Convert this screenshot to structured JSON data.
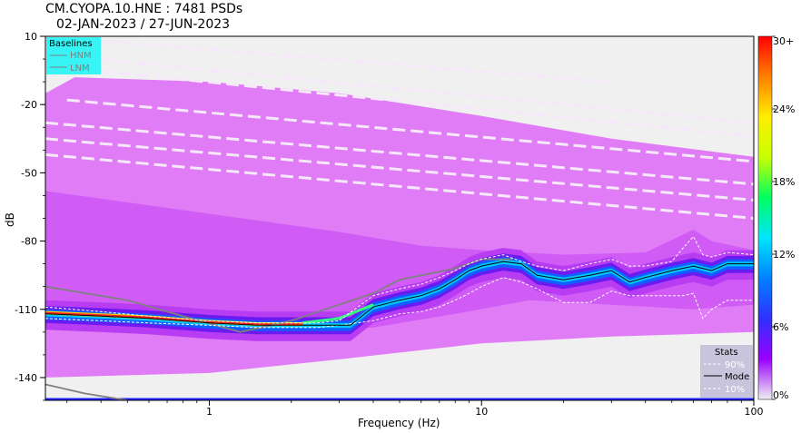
{
  "title": {
    "line1": "CM.CYOPA.10.HNE : 7481 PSDs",
    "line2": "02-JAN-2023 / 27-JUN-2023"
  },
  "chart_data": {
    "type": "heatmap",
    "xlabel": "Frequency (Hz)",
    "ylabel": "dB",
    "x_scale": "log",
    "xlim": [
      0.25,
      100
    ],
    "ylim": [
      -150,
      10
    ],
    "x_ticks": [
      {
        "value": 1,
        "label": "1"
      },
      {
        "value": 10,
        "label": "10"
      },
      {
        "value": 100,
        "label": "100"
      }
    ],
    "y_ticks": [
      {
        "value": 10,
        "label": "10"
      },
      {
        "value": -20,
        "label": "-20"
      },
      {
        "value": -50,
        "label": "-50"
      },
      {
        "value": -80,
        "label": "-80"
      },
      {
        "value": -110,
        "label": "-110"
      },
      {
        "value": -140,
        "label": "-140"
      }
    ],
    "colorbar": {
      "ticks": [
        {
          "value": 30,
          "label": "30+"
        },
        {
          "value": 24,
          "label": "24%"
        },
        {
          "value": 18,
          "label": "18%"
        },
        {
          "value": 12,
          "label": "12%"
        },
        {
          "value": 6,
          "label": "6%"
        },
        {
          "value": 0,
          "label": "0%"
        }
      ],
      "colors": [
        "#f0f0f0",
        "#9b00ff",
        "#3030ff",
        "#0080ff",
        "#00e5ff",
        "#00ff60",
        "#c8ff00",
        "#ffee00",
        "#ff8000",
        "#ff0000"
      ]
    },
    "baselines_legend": {
      "title": "Baselines",
      "entries": [
        {
          "name": "HNM",
          "color": "#808080"
        },
        {
          "name": "LNM",
          "color": "#808080"
        }
      ]
    },
    "stats_legend": {
      "title": "Stats",
      "entries": [
        {
          "name": "90%",
          "style": "dashed",
          "color": "#ffffff"
        },
        {
          "name": "Mode",
          "style": "solid",
          "color": "#000000"
        },
        {
          "name": "10%",
          "style": "dashed",
          "color": "#ffffff"
        }
      ]
    },
    "series": {
      "mode": {
        "x": [
          0.25,
          0.4,
          0.6,
          1,
          1.5,
          2,
          2.5,
          3,
          3.3,
          4,
          5,
          6,
          7,
          8,
          9,
          10,
          12,
          14,
          16,
          20,
          25,
          30,
          35,
          40,
          50,
          60,
          70,
          80,
          100
        ],
        "y": [
          -112,
          -113,
          -114,
          -116,
          -117,
          -117,
          -117,
          -117,
          -117,
          -109,
          -106,
          -104,
          -101,
          -97,
          -93,
          -91,
          -89,
          -90,
          -95,
          -97,
          -95,
          -93,
          -98,
          -96,
          -93,
          -91,
          -93,
          -90,
          -90
        ]
      },
      "p90": {
        "x": [
          0.25,
          0.4,
          0.6,
          1,
          1.5,
          2,
          2.5,
          3,
          4,
          5,
          6,
          7,
          8,
          9,
          10,
          12,
          14,
          16,
          20,
          25,
          30,
          35,
          40,
          50,
          55,
          60,
          65,
          70,
          80,
          100
        ],
        "y": [
          -109,
          -111,
          -113,
          -115,
          -116,
          -116,
          -116,
          -115,
          -104,
          -101,
          -99,
          -96,
          -93,
          -90,
          -88,
          -86,
          -89,
          -91,
          -93,
          -90,
          -88,
          -91,
          -91,
          -89,
          -83,
          -78,
          -86,
          -87,
          -85,
          -86
        ]
      },
      "p10": {
        "x": [
          0.25,
          0.4,
          0.6,
          1,
          1.5,
          2,
          2.5,
          3,
          4,
          5,
          6,
          7,
          8,
          9,
          10,
          12,
          14,
          16,
          20,
          25,
          30,
          35,
          40,
          50,
          55,
          60,
          65,
          70,
          80,
          100
        ],
        "y": [
          -114,
          -115,
          -116,
          -117,
          -118,
          -118,
          -118,
          -117,
          -115,
          -112,
          -111,
          -109,
          -106,
          -103,
          -100,
          -96,
          -98,
          -101,
          -107,
          -107,
          -102,
          -104,
          -104,
          -104,
          -104,
          -103,
          -114,
          -110,
          -106,
          -106
        ]
      },
      "hnm": {
        "x": [
          0.25,
          0.5,
          0.8,
          1.3,
          2,
          3,
          4,
          5,
          8,
          10,
          13
        ],
        "y": [
          -100,
          -106,
          -113,
          -120,
          -115,
          -108,
          -103,
          -97,
          -92,
          -88,
          -88
        ]
      },
      "lnm": {
        "x": [
          0.25,
          0.35,
          0.5
        ],
        "y": [
          -143,
          -147,
          -150
        ]
      }
    }
  }
}
